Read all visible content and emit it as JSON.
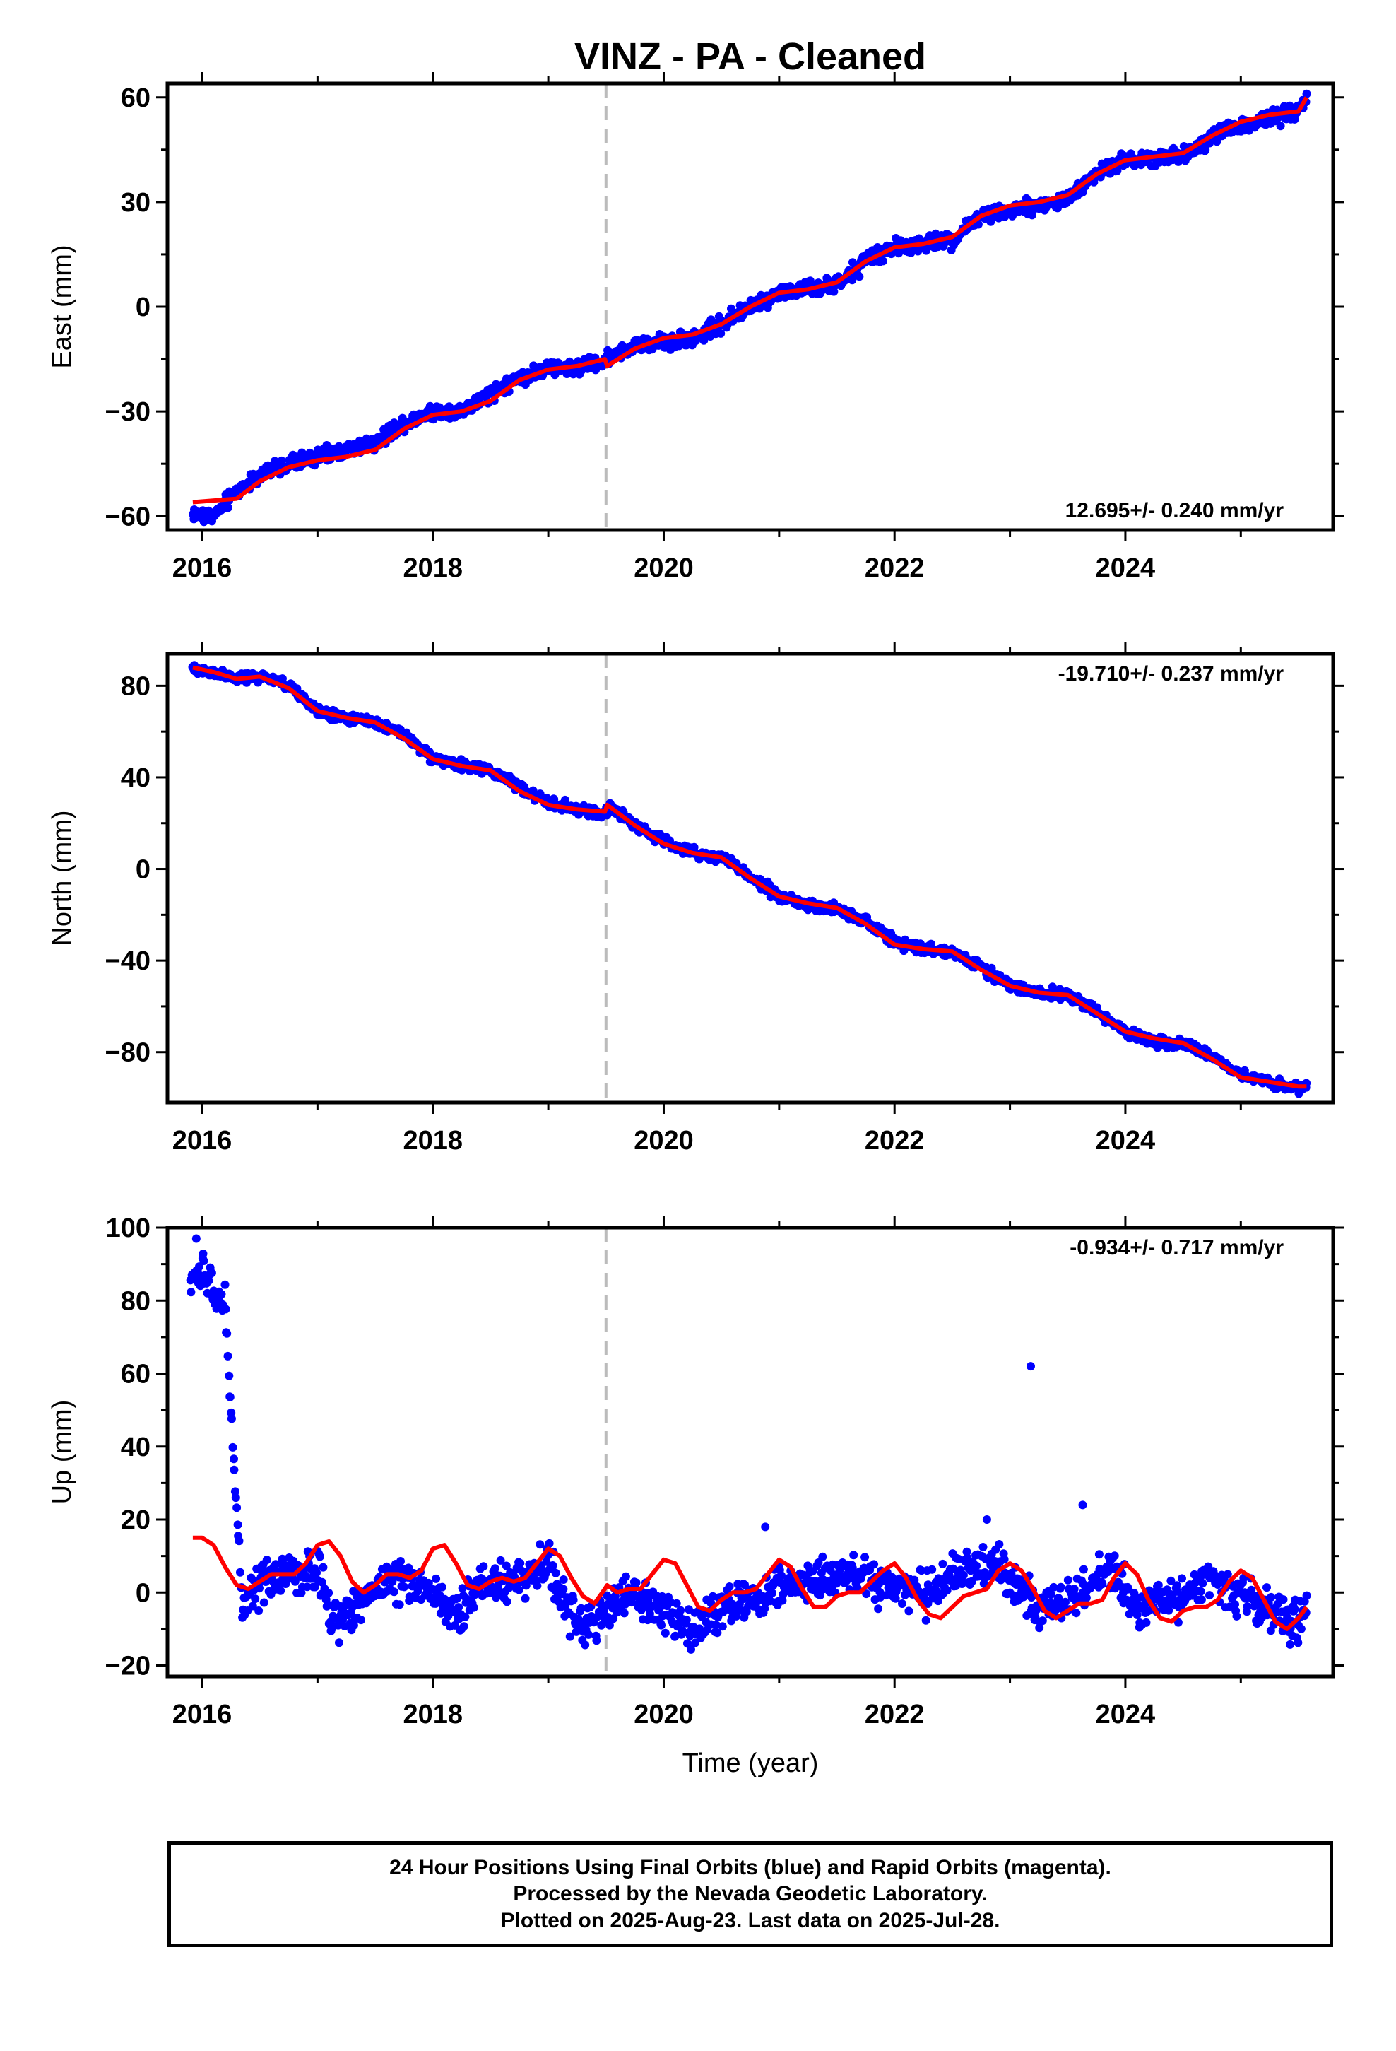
{
  "title": "VINZ  - PA - Cleaned",
  "colors": {
    "final_orbits": "#0000ff",
    "model": "#ff0000",
    "frame": "#000000",
    "event_line": "#bbbbbb"
  },
  "footer": {
    "line1": "24 Hour Positions Using Final Orbits (blue) and Rapid Orbits (magenta).",
    "line2": "Processed by the Nevada Geodetic Laboratory.",
    "line3": "Plotted on 2025-Aug-23. Last data on 2025-Jul-28."
  },
  "chart_data": [
    {
      "type": "scatter",
      "ylabel": "East (mm)",
      "xlabel": "",
      "xlim": [
        2015.7,
        2025.8
      ],
      "ylim": [
        -64,
        64
      ],
      "xticks": [
        2016,
        2018,
        2020,
        2022,
        2024
      ],
      "yticks": [
        -60,
        -30,
        0,
        30,
        60
      ],
      "event_line_x": 2019.5,
      "rate_label": "12.695+/- 0.240 mm/yr",
      "rate_position": "bottom-right",
      "series": [
        {
          "role": "daily positions",
          "color": "#0000ff",
          "x": [
            2015.92,
            2016.0,
            2016.1,
            2016.3,
            2016.5,
            2016.75,
            2017.0,
            2017.25,
            2017.5,
            2017.75,
            2018.0,
            2018.25,
            2018.5,
            2018.75,
            2019.0,
            2019.25,
            2019.45,
            2019.6,
            2019.8,
            2020.0,
            2020.25,
            2020.5,
            2020.75,
            2021.0,
            2021.25,
            2021.5,
            2021.75,
            2022.0,
            2022.25,
            2022.5,
            2022.75,
            2023.0,
            2023.25,
            2023.5,
            2023.75,
            2024.0,
            2024.25,
            2024.5,
            2024.75,
            2025.0,
            2025.25,
            2025.5,
            2025.57
          ],
          "y": [
            -59,
            -60,
            -60,
            -53,
            -48,
            -45,
            -43,
            -41,
            -39,
            -33,
            -30,
            -30,
            -25,
            -20,
            -18,
            -17,
            -16,
            -13,
            -11,
            -10,
            -9,
            -5,
            0,
            4,
            5,
            6,
            13,
            17,
            18,
            19,
            26,
            28,
            29,
            31,
            38,
            42,
            43,
            43,
            49,
            52,
            54,
            56,
            60
          ]
        },
        {
          "role": "trajectory model",
          "color": "#ff0000",
          "x": [
            2015.92,
            2016.3,
            2016.5,
            2016.75,
            2017.0,
            2017.25,
            2017.5,
            2017.75,
            2018.0,
            2018.25,
            2018.5,
            2018.75,
            2019.0,
            2019.25,
            2019.49,
            2019.51,
            2019.75,
            2020.0,
            2020.25,
            2020.5,
            2020.75,
            2021.0,
            2021.25,
            2021.5,
            2021.75,
            2022.0,
            2022.25,
            2022.5,
            2022.75,
            2023.0,
            2023.25,
            2023.5,
            2023.75,
            2024.0,
            2024.25,
            2024.5,
            2024.75,
            2025.0,
            2025.25,
            2025.5,
            2025.57
          ],
          "y": [
            -56,
            -55,
            -50,
            -46,
            -44,
            -43,
            -41,
            -35,
            -31,
            -30,
            -27,
            -21,
            -18,
            -17,
            -15,
            -17,
            -12,
            -9,
            -8,
            -5,
            0,
            4,
            5,
            7,
            13,
            17,
            18,
            20,
            26,
            29,
            30,
            32,
            38,
            42,
            43,
            44,
            49,
            53,
            55,
            56,
            60
          ]
        }
      ]
    },
    {
      "type": "scatter",
      "ylabel": "North (mm)",
      "xlabel": "",
      "xlim": [
        2015.7,
        2025.8
      ],
      "ylim": [
        -102,
        94
      ],
      "xticks": [
        2016,
        2018,
        2020,
        2022,
        2024
      ],
      "yticks": [
        -80,
        -40,
        0,
        40,
        80
      ],
      "event_line_x": 2019.5,
      "rate_label": "-19.710+/- 0.237 mm/yr",
      "rate_position": "top-right",
      "series": [
        {
          "role": "daily positions",
          "color": "#0000ff",
          "x": [
            2015.92,
            2016.1,
            2016.3,
            2016.5,
            2016.75,
            2017.0,
            2017.25,
            2017.5,
            2017.75,
            2018.0,
            2018.25,
            2018.5,
            2018.75,
            2019.0,
            2019.25,
            2019.45,
            2019.55,
            2019.75,
            2020.0,
            2020.25,
            2020.5,
            2020.75,
            2021.0,
            2021.25,
            2021.5,
            2021.75,
            2022.0,
            2022.25,
            2022.5,
            2022.75,
            2023.0,
            2023.25,
            2023.5,
            2023.75,
            2024.0,
            2024.25,
            2024.5,
            2024.75,
            2025.0,
            2025.25,
            2025.5,
            2025.57
          ],
          "y": [
            87,
            86,
            83,
            84,
            80,
            69,
            66,
            64,
            59,
            48,
            45,
            43,
            36,
            29,
            26,
            24,
            27,
            19,
            12,
            7,
            5,
            -3,
            -12,
            -16,
            -17,
            -23,
            -32,
            -35,
            -36,
            -43,
            -51,
            -54,
            -55,
            -62,
            -71,
            -75,
            -76,
            -82,
            -90,
            -93,
            -96,
            -96
          ]
        },
        {
          "role": "trajectory model",
          "color": "#ff0000",
          "x": [
            2015.92,
            2016.1,
            2016.3,
            2016.5,
            2016.75,
            2017.0,
            2017.25,
            2017.5,
            2017.75,
            2018.0,
            2018.25,
            2018.5,
            2018.75,
            2019.0,
            2019.25,
            2019.49,
            2019.51,
            2019.75,
            2020.0,
            2020.25,
            2020.5,
            2020.75,
            2021.0,
            2021.25,
            2021.5,
            2021.75,
            2022.0,
            2022.25,
            2022.5,
            2022.75,
            2023.0,
            2023.25,
            2023.5,
            2023.75,
            2024.0,
            2024.25,
            2024.5,
            2024.75,
            2025.0,
            2025.25,
            2025.5,
            2025.57
          ],
          "y": [
            88,
            86,
            83,
            84,
            79,
            69,
            66,
            64,
            57,
            48,
            45,
            43,
            34,
            28,
            26,
            25,
            28,
            19,
            11,
            7,
            5,
            -4,
            -12,
            -15,
            -17,
            -24,
            -33,
            -35,
            -36,
            -44,
            -51,
            -54,
            -55,
            -63,
            -71,
            -74,
            -76,
            -83,
            -91,
            -93,
            -95,
            -95
          ]
        }
      ]
    },
    {
      "type": "scatter",
      "ylabel": "Up (mm)",
      "xlabel": "Time (year)",
      "xlim": [
        2015.7,
        2025.8
      ],
      "ylim": [
        -23,
        100
      ],
      "xticks": [
        2016,
        2018,
        2020,
        2022,
        2024
      ],
      "yticks": [
        -20,
        0,
        20,
        40,
        60,
        80,
        100
      ],
      "event_line_x": 2019.5,
      "rate_label": "-0.934+/- 0.717 mm/yr",
      "rate_position": "top-right",
      "outliers": [
        {
          "x": 2015.95,
          "y": 97
        },
        {
          "x": 2023.18,
          "y": 62
        },
        {
          "x": 2023.63,
          "y": 24
        },
        {
          "x": 2022.8,
          "y": 20
        },
        {
          "x": 2020.88,
          "y": 18
        }
      ],
      "series": [
        {
          "role": "daily positions",
          "color": "#0000ff",
          "x": [
            2015.9,
            2015.97,
            2016.05,
            2016.12,
            2016.2,
            2016.35,
            2016.5,
            2016.75,
            2017.0,
            2017.15,
            2017.3,
            2017.5,
            2017.75,
            2018.0,
            2018.2,
            2018.4,
            2018.6,
            2018.8,
            2019.0,
            2019.15,
            2019.3,
            2019.5,
            2019.7,
            2019.9,
            2020.1,
            2020.3,
            2020.5,
            2020.7,
            2020.9,
            2021.1,
            2021.3,
            2021.5,
            2021.7,
            2021.9,
            2022.1,
            2022.3,
            2022.5,
            2022.7,
            2022.9,
            2023.1,
            2023.3,
            2023.5,
            2023.7,
            2023.9,
            2024.1,
            2024.3,
            2024.5,
            2024.7,
            2024.9,
            2025.1,
            2025.3,
            2025.5,
            2025.57
          ],
          "y": [
            84,
            88,
            85,
            82,
            79,
            -5,
            2,
            5,
            6,
            -8,
            -5,
            2,
            4,
            0,
            -7,
            3,
            3,
            5,
            8,
            -3,
            -10,
            -5,
            -1,
            -3,
            -7,
            -10,
            -4,
            -2,
            0,
            2,
            3,
            4,
            5,
            2,
            1,
            0,
            5,
            6,
            7,
            1,
            -5,
            -2,
            2,
            7,
            -5,
            -3,
            -1,
            4,
            1,
            -2,
            -6,
            -8,
            -5
          ]
        },
        {
          "role": "trajectory model",
          "color": "#ff0000",
          "x": [
            2015.92,
            2016.0,
            2016.1,
            2016.2,
            2016.3,
            2016.4,
            2016.5,
            2016.6,
            2016.7,
            2016.8,
            2016.9,
            2017.0,
            2017.1,
            2017.2,
            2017.3,
            2017.4,
            2017.5,
            2017.6,
            2017.7,
            2017.8,
            2017.9,
            2018.0,
            2018.1,
            2018.2,
            2018.3,
            2018.4,
            2018.5,
            2018.6,
            2018.7,
            2018.8,
            2018.9,
            2019.0,
            2019.1,
            2019.2,
            2019.3,
            2019.4,
            2019.49,
            2019.51,
            2019.6,
            2019.7,
            2019.8,
            2019.9,
            2020.0,
            2020.1,
            2020.2,
            2020.3,
            2020.4,
            2020.5,
            2020.6,
            2020.7,
            2020.8,
            2020.9,
            2021.0,
            2021.1,
            2021.2,
            2021.3,
            2021.4,
            2021.5,
            2021.6,
            2021.7,
            2021.8,
            2021.9,
            2022.0,
            2022.1,
            2022.2,
            2022.3,
            2022.4,
            2022.5,
            2022.6,
            2022.7,
            2022.8,
            2022.9,
            2023.0,
            2023.1,
            2023.2,
            2023.3,
            2023.4,
            2023.5,
            2023.6,
            2023.7,
            2023.8,
            2023.9,
            2024.0,
            2024.1,
            2024.2,
            2024.3,
            2024.4,
            2024.5,
            2024.6,
            2024.7,
            2024.8,
            2024.9,
            2025.0,
            2025.1,
            2025.2,
            2025.3,
            2025.4,
            2025.5,
            2025.57
          ],
          "y": [
            15,
            15,
            13,
            7,
            2,
            1,
            3,
            5,
            5,
            5,
            8,
            13,
            14,
            10,
            3,
            0,
            2,
            5,
            5,
            4,
            6,
            12,
            13,
            8,
            2,
            1,
            3,
            4,
            3,
            4,
            8,
            12,
            10,
            4,
            -1,
            -3,
            1,
            2,
            0,
            1,
            1,
            5,
            9,
            8,
            2,
            -4,
            -5,
            -2,
            0,
            0,
            1,
            5,
            9,
            7,
            1,
            -4,
            -4,
            -1,
            0,
            0,
            3,
            6,
            8,
            4,
            -2,
            -6,
            -7,
            -4,
            -1,
            0,
            1,
            6,
            8,
            6,
            1,
            -5,
            -7,
            -5,
            -3,
            -3,
            -2,
            4,
            8,
            5,
            -2,
            -7,
            -8,
            -5,
            -4,
            -4,
            -2,
            3,
            6,
            4,
            -2,
            -8,
            -10,
            -7,
            -4
          ]
        }
      ]
    }
  ]
}
